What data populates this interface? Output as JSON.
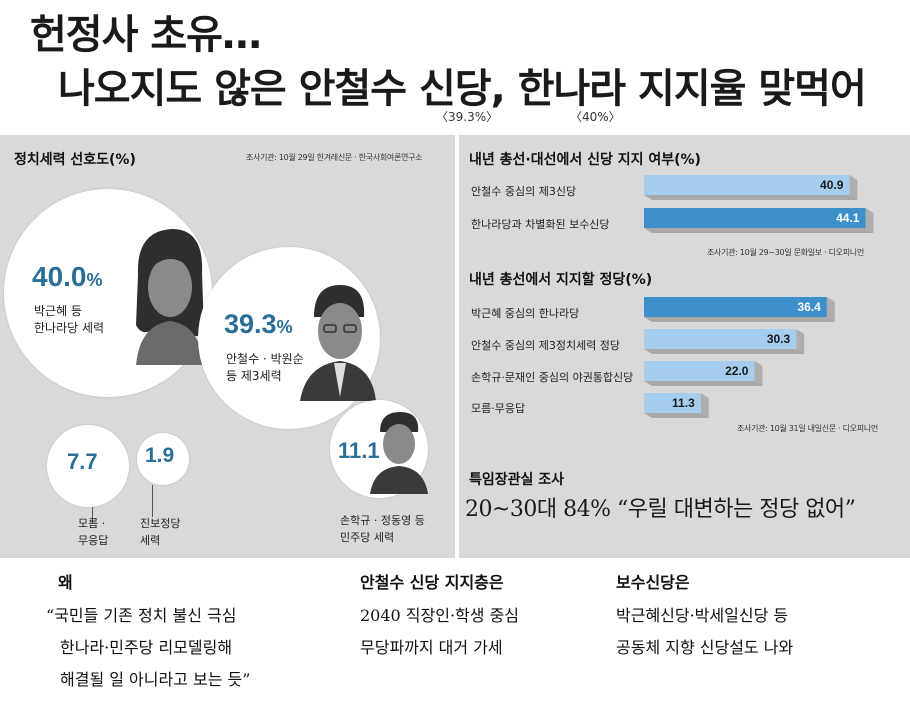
{
  "headline": {
    "line1": "헌정사 초유…",
    "line2": "나오지도 않은 안철수 신당, 한나라 지지율 맞먹어",
    "note_left": "〈39.3%〉",
    "note_right": "〈40%〉"
  },
  "left_panel": {
    "title": "정치세력 선호도(%)",
    "source": "조사기관: 10월 29일 한겨레신문 · 한국사회여론연구소",
    "items": [
      {
        "value": "40.0",
        "unit": "%",
        "label1": "박근혜 등",
        "label2": "한나라당 세력"
      },
      {
        "value": "39.3",
        "unit": "%",
        "label1": "안철수 · 박원순",
        "label2": "등 제3세력"
      },
      {
        "value": "11.1",
        "label1": "손학규 · 정동영 등",
        "label2": "민주당 세력"
      },
      {
        "value": "7.7",
        "label1": "모름 ·",
        "label2": "무응답"
      },
      {
        "value": "1.9",
        "label1": "진보정당",
        "label2": "세력"
      }
    ]
  },
  "chart_data": [
    {
      "type": "bar",
      "title": "내년 총선·대선에서 신당 지지 여부(%)",
      "categories": [
        "안철수 중심의 제3신당",
        "한나라당과 차별화된 보수신당"
      ],
      "values": [
        40.9,
        44.1
      ],
      "value_labels": [
        "40.9",
        "44.1"
      ],
      "colors": [
        "#a6cdee",
        "#3d8fc9"
      ],
      "source": "조사기관: 10월 29~30일 문화일보 · 디오피니언"
    },
    {
      "type": "bar",
      "title": "내년 총선에서 지지할 정당(%)",
      "categories": [
        "박근혜 중심의 한나라당",
        "안철수 중심의 제3정치세력 정당",
        "손학규·문재인 중심의 야권통합신당",
        "모름·무응답"
      ],
      "values": [
        36.4,
        30.3,
        22.0,
        11.3
      ],
      "value_labels": [
        "36.4",
        "30.3",
        "22.0",
        "11.3"
      ],
      "colors": [
        "#3d8fc9",
        "#a6cdee",
        "#a6cdee",
        "#a6cdee"
      ],
      "source": "조사기관: 10월 31일 내일신문 · 디오피니언"
    }
  ],
  "special": {
    "title": "특임장관실 조사",
    "quote": "20~30대 84% “우릴 대변하는 정당 없어”"
  },
  "bottom": [
    {
      "head": "왜",
      "lines": [
        "“국민들 기존 정치 불신 극심",
        "한나라·민주당 리모델링해",
        "해결될 일 아니라고 보는 듯”"
      ]
    },
    {
      "head": "안철수 신당 지지층은",
      "lines": [
        "2040 직장인·학생 중심",
        "무당파까지 대거 가세"
      ]
    },
    {
      "head": "보수신당은",
      "lines": [
        "박근혜신당·박세일신당 등",
        "공동체 지향 신당설도 나와"
      ]
    }
  ],
  "colors": {
    "accent_dark": "#3d8fc9",
    "accent_light": "#a6cdee",
    "number_blue": "#2a6f98",
    "panel_bg": "#d9d9d9"
  }
}
